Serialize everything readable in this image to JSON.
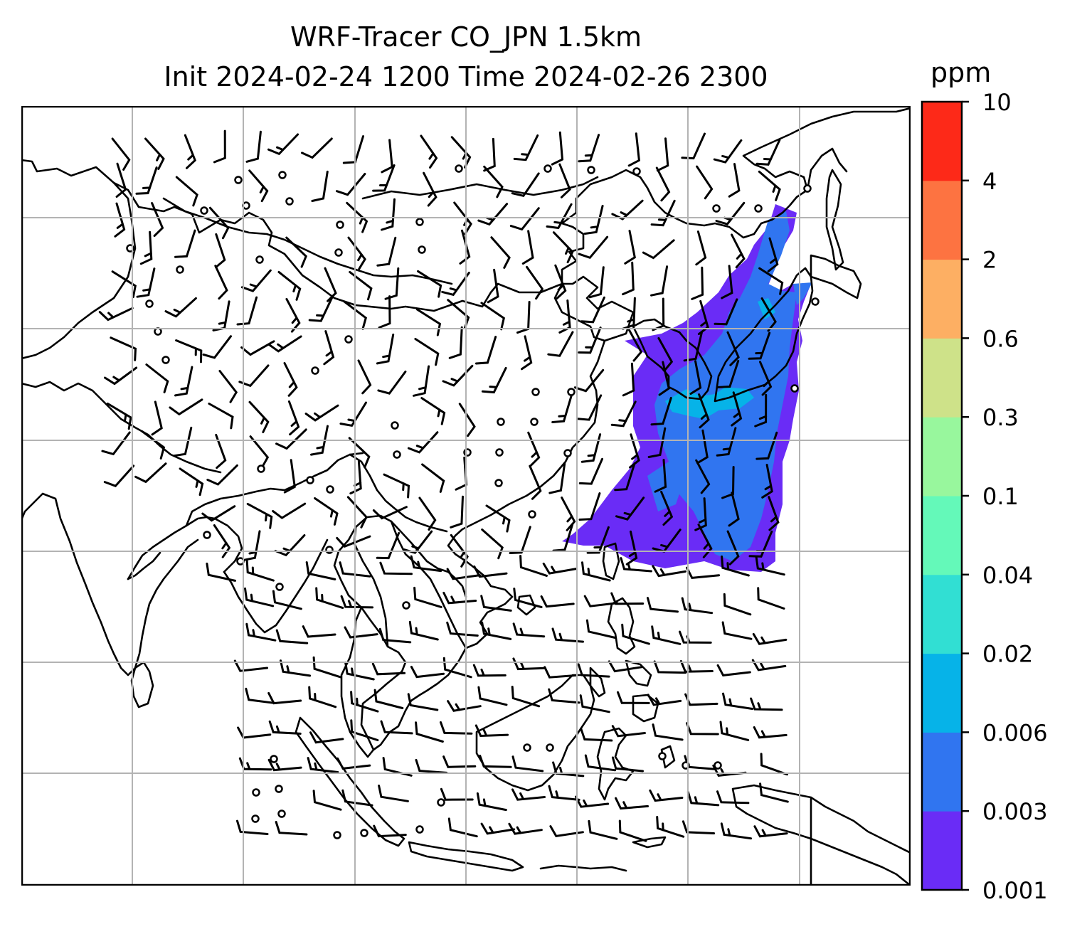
{
  "title": {
    "line1": "WRF-Tracer CO_JPN 1.5km",
    "line2": "Init 2024-02-24 1200 Time 2024-02-26 2300"
  },
  "map": {
    "graticule": true,
    "variable": "CO tracer",
    "overlay": "wind barbs",
    "plume_colors": [
      "#6a2cf6",
      "#3075f0",
      "#06b3e8"
    ]
  },
  "colorbar": {
    "unit": "ppm",
    "levels": [
      "0.001",
      "0.003",
      "0.006",
      "0.02",
      "0.04",
      "0.1",
      "0.3",
      "0.6",
      "2",
      "4",
      "10"
    ],
    "colors": [
      "#6a2cf6",
      "#3075f0",
      "#06b3e8",
      "#31dfd3",
      "#64f9b9",
      "#98f79d",
      "#cee289",
      "#fdaf63",
      "#fd7341",
      "#fd2918"
    ]
  }
}
